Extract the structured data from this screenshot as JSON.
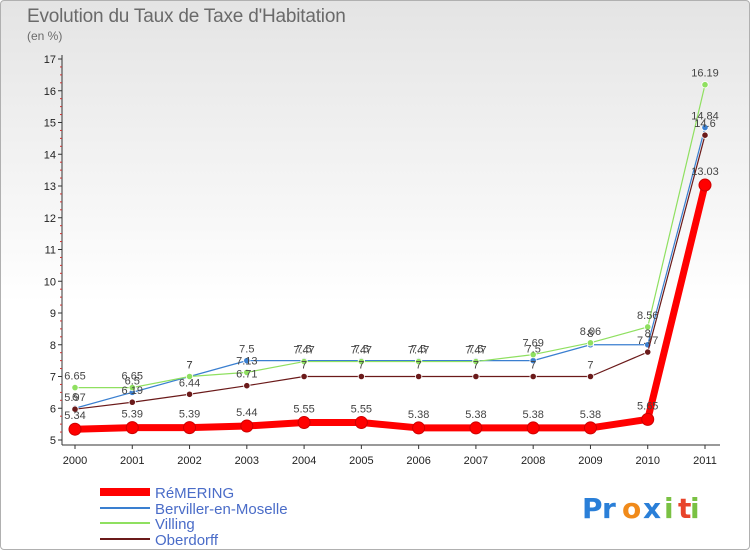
{
  "chart_data": {
    "type": "line",
    "title": "Evolution du Taux de Taxe d'Habitation",
    "ylabel": "(en %)",
    "x": [
      "2000",
      "2001",
      "2002",
      "2003",
      "2004",
      "2005",
      "2006",
      "2007",
      "2008",
      "2009",
      "2010",
      "2011"
    ],
    "ylim": [
      5,
      17
    ],
    "yticks": [
      5,
      6,
      7,
      8,
      9,
      10,
      11,
      12,
      13,
      14,
      15,
      16,
      17
    ],
    "grid": false,
    "legend_position": "bottom-left",
    "series": [
      {
        "name": "RéMERING",
        "color": "#ff0000",
        "values": [
          5.34,
          5.39,
          5.39,
          5.44,
          5.55,
          5.55,
          5.38,
          5.38,
          5.38,
          5.38,
          5.65,
          13.03
        ],
        "labels": [
          "5.34",
          "5.39",
          "5.39",
          "5.44",
          "5.55",
          "5.55",
          "5.38",
          "5.38",
          "5.38",
          "5.38",
          "5.65",
          "13.03"
        ]
      },
      {
        "name": "Berviller-en-Moselle",
        "color": "#3a7fd0",
        "values": [
          6.0,
          6.5,
          7.0,
          7.5,
          7.5,
          7.5,
          7.5,
          7.5,
          7.5,
          8.0,
          8.0,
          14.84
        ],
        "labels": [
          "6",
          "6.5",
          "7",
          "7.5",
          "7.5",
          "7.5",
          "7.5",
          "7.5",
          "7.5",
          "8",
          "8",
          "14.84"
        ]
      },
      {
        "name": "Villing",
        "color": "#8fe060",
        "values": [
          6.65,
          6.65,
          7.0,
          7.13,
          7.47,
          7.47,
          7.47,
          7.47,
          7.69,
          8.06,
          8.56,
          16.19
        ],
        "labels": [
          "6.65",
          "6.65",
          "7",
          "7.13",
          "7.47",
          "7.47",
          "7.47",
          "7.47",
          "7.69",
          "8.06",
          "8.56",
          "16.19"
        ]
      },
      {
        "name": "Oberdorff",
        "color": "#6b1a1a",
        "values": [
          5.97,
          6.19,
          6.44,
          6.71,
          7.0,
          7.0,
          7.0,
          7.0,
          7.0,
          7.0,
          7.77,
          14.6
        ],
        "labels": [
          "5.97",
          "6.19",
          "6.44",
          "6.71",
          "7",
          "7",
          "7",
          "7",
          "7",
          "7",
          "7.77",
          "14.6"
        ]
      }
    ]
  },
  "brand": "Proxiti",
  "brand_letters": [
    "P",
    "r",
    "o",
    "x",
    "i",
    "t",
    "i"
  ],
  "brand_colors": [
    "#2a7fd8",
    "#2a7fd8",
    "#f08a1a",
    "#2a7fd8",
    "#7ac143",
    "#e8442a",
    "#7ac143"
  ]
}
